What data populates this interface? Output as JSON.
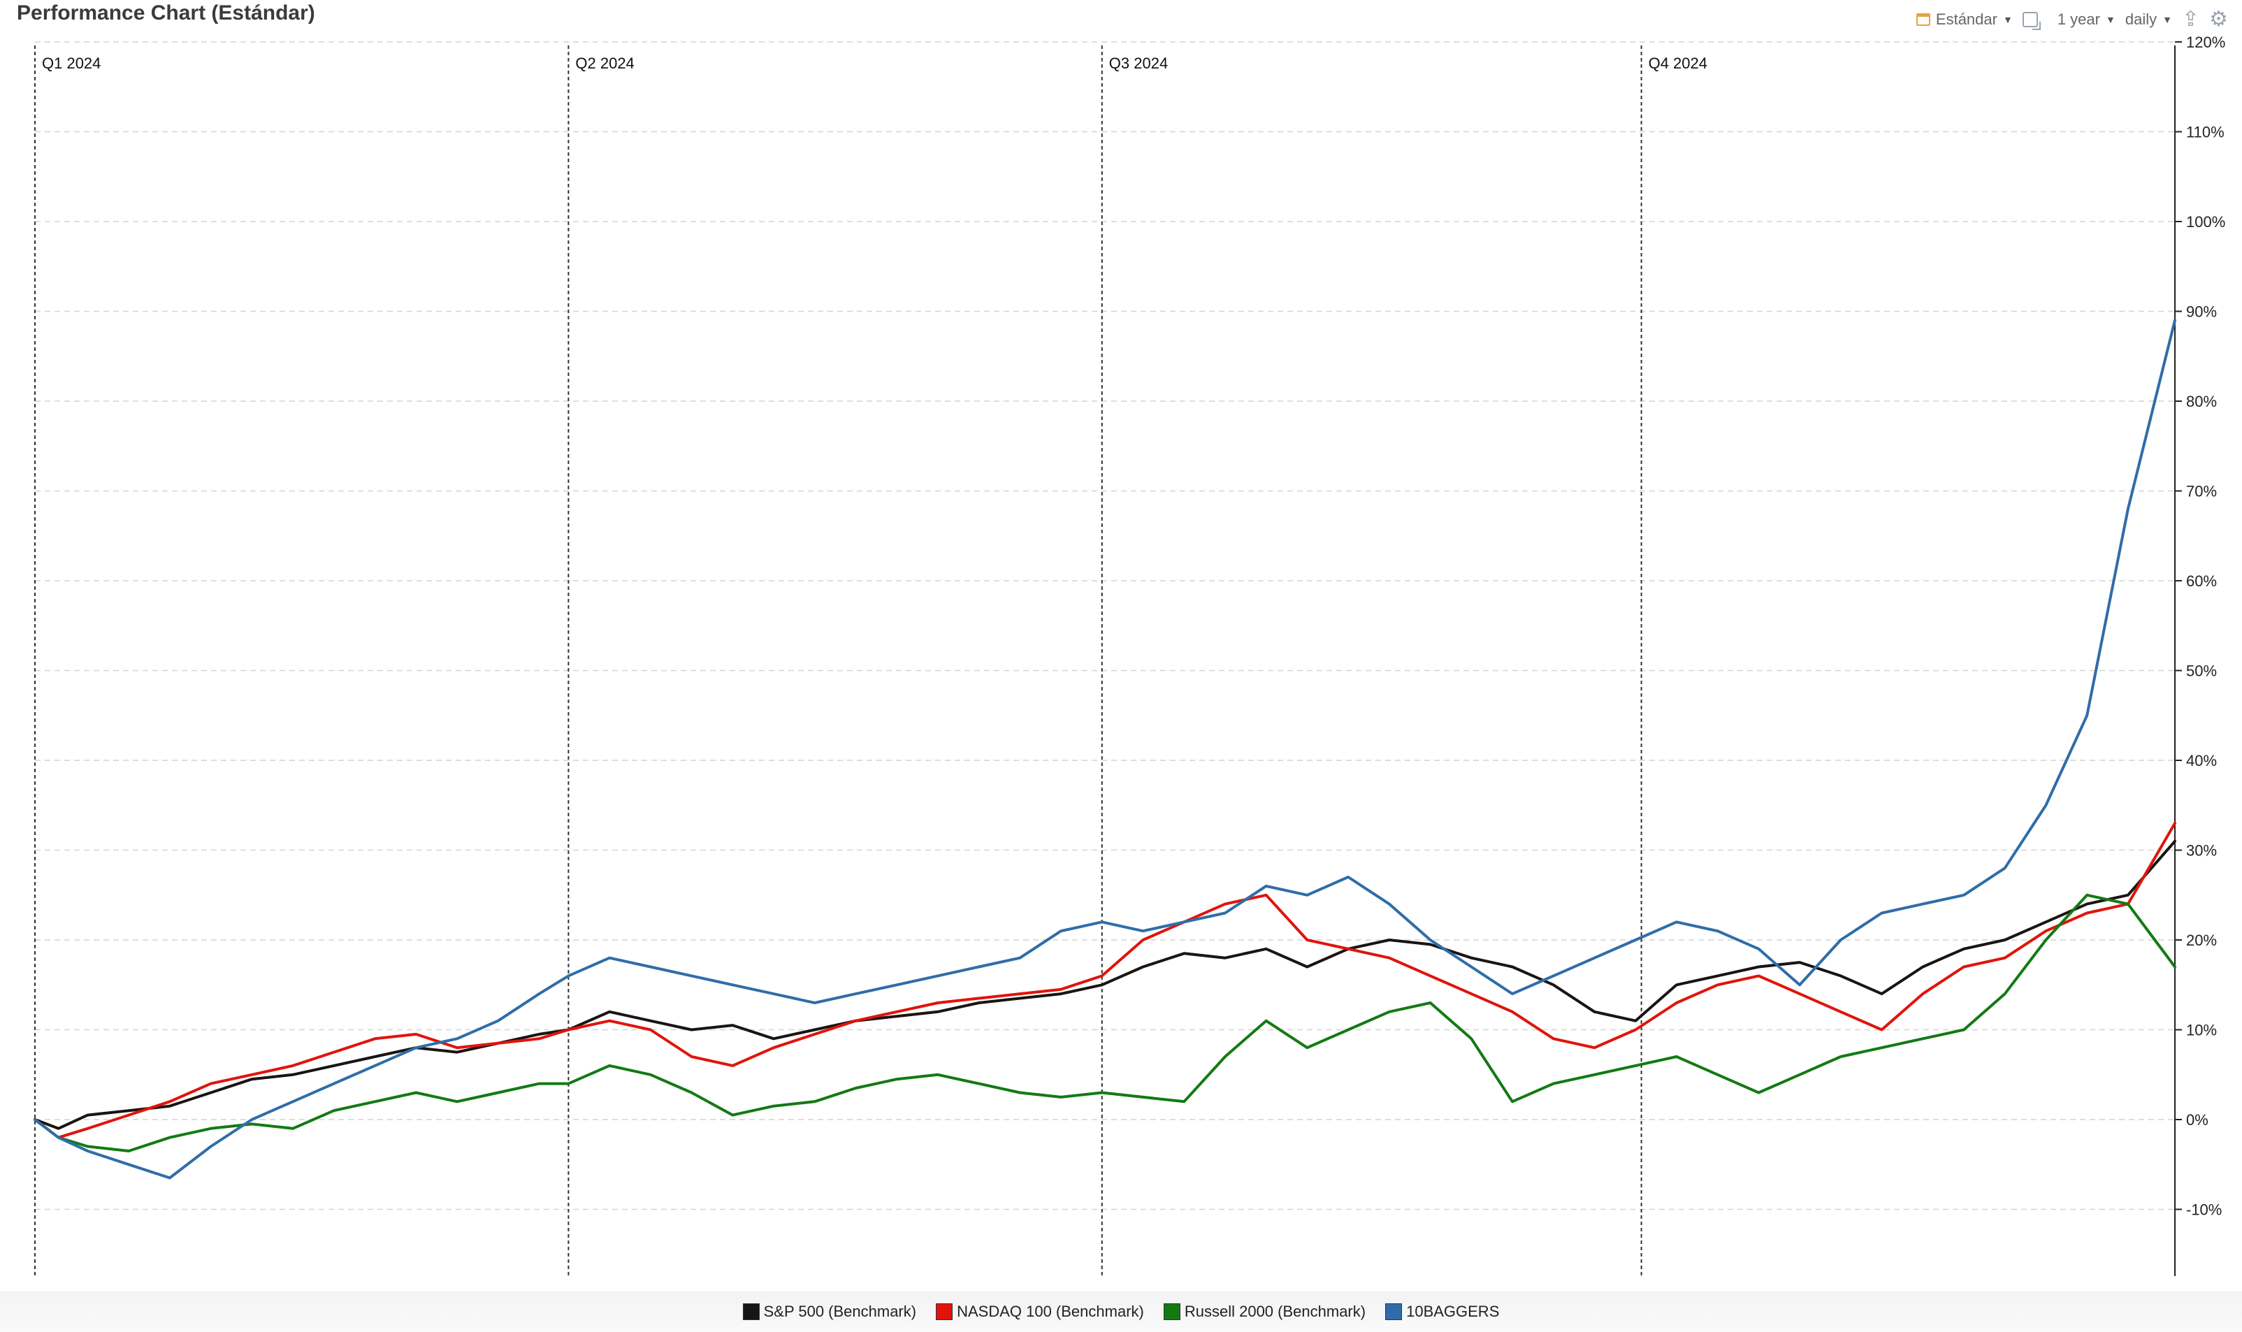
{
  "title": "Performance Chart (Estándar)",
  "toolbar": {
    "template_label": "Estándar",
    "range_label": "1 year",
    "interval_label": "daily",
    "icons": [
      "calendar-icon",
      "compare-icon",
      "export-icon",
      "gear-icon"
    ]
  },
  "chart_data": {
    "type": "line",
    "x_range": [
      "2024-01-01",
      "2024-12-31"
    ],
    "ylim": [
      -15,
      120
    ],
    "y_ticks": [
      -10,
      0,
      10,
      20,
      30,
      40,
      50,
      60,
      70,
      80,
      90,
      100,
      110,
      120
    ],
    "y_tick_labels": [
      "-10%",
      "0%",
      "10%",
      "20%",
      "30%",
      "40%",
      "50%",
      "60%",
      "70%",
      "80%",
      "90%",
      "100%",
      "110%",
      "120%"
    ],
    "quarters": [
      {
        "label": "Q1 2024",
        "date": "2024-01-01"
      },
      {
        "label": "Q2 2024",
        "date": "2024-04-01"
      },
      {
        "label": "Q3 2024",
        "date": "2024-07-01"
      },
      {
        "label": "Q4 2024",
        "date": "2024-10-01"
      }
    ],
    "legend_position": "bottom",
    "series": [
      {
        "name": "S&P 500  (Benchmark)",
        "color": "#1a1412",
        "points": [
          [
            "2024-01-01",
            0
          ],
          [
            "2024-01-05",
            -1
          ],
          [
            "2024-01-10",
            0.5
          ],
          [
            "2024-01-17",
            1
          ],
          [
            "2024-01-24",
            1.5
          ],
          [
            "2024-01-31",
            3
          ],
          [
            "2024-02-07",
            4.5
          ],
          [
            "2024-02-14",
            5
          ],
          [
            "2024-02-21",
            6
          ],
          [
            "2024-02-28",
            7
          ],
          [
            "2024-03-06",
            8
          ],
          [
            "2024-03-13",
            7.5
          ],
          [
            "2024-03-20",
            8.5
          ],
          [
            "2024-03-27",
            9.5
          ],
          [
            "2024-04-01",
            10
          ],
          [
            "2024-04-08",
            12
          ],
          [
            "2024-04-15",
            11
          ],
          [
            "2024-04-22",
            10
          ],
          [
            "2024-04-29",
            10.5
          ],
          [
            "2024-05-06",
            9
          ],
          [
            "2024-05-13",
            10
          ],
          [
            "2024-05-20",
            11
          ],
          [
            "2024-05-27",
            11.5
          ],
          [
            "2024-06-03",
            12
          ],
          [
            "2024-06-10",
            13
          ],
          [
            "2024-06-17",
            13.5
          ],
          [
            "2024-06-24",
            14
          ],
          [
            "2024-07-01",
            15
          ],
          [
            "2024-07-08",
            17
          ],
          [
            "2024-07-15",
            18.5
          ],
          [
            "2024-07-22",
            18
          ],
          [
            "2024-07-29",
            19
          ],
          [
            "2024-08-05",
            17
          ],
          [
            "2024-08-12",
            19
          ],
          [
            "2024-08-19",
            20
          ],
          [
            "2024-08-26",
            19.5
          ],
          [
            "2024-09-02",
            18
          ],
          [
            "2024-09-09",
            17
          ],
          [
            "2024-09-16",
            15
          ],
          [
            "2024-09-23",
            12
          ],
          [
            "2024-09-30",
            11
          ],
          [
            "2024-10-07",
            15
          ],
          [
            "2024-10-14",
            16
          ],
          [
            "2024-10-21",
            17
          ],
          [
            "2024-10-28",
            17.5
          ],
          [
            "2024-11-04",
            16
          ],
          [
            "2024-11-11",
            14
          ],
          [
            "2024-11-18",
            17
          ],
          [
            "2024-11-25",
            19
          ],
          [
            "2024-12-02",
            20
          ],
          [
            "2024-12-09",
            22
          ],
          [
            "2024-12-16",
            24
          ],
          [
            "2024-12-23",
            25
          ],
          [
            "2024-12-31",
            31
          ]
        ]
      },
      {
        "name": "NASDAQ 100 (Benchmark)",
        "color": "#e0140c",
        "points": [
          [
            "2024-01-01",
            0
          ],
          [
            "2024-01-05",
            -2
          ],
          [
            "2024-01-10",
            -1
          ],
          [
            "2024-01-17",
            0.5
          ],
          [
            "2024-01-24",
            2
          ],
          [
            "2024-01-31",
            4
          ],
          [
            "2024-02-07",
            5
          ],
          [
            "2024-02-14",
            6
          ],
          [
            "2024-02-21",
            7.5
          ],
          [
            "2024-02-28",
            9
          ],
          [
            "2024-03-06",
            9.5
          ],
          [
            "2024-03-13",
            8
          ],
          [
            "2024-03-20",
            8.5
          ],
          [
            "2024-03-27",
            9
          ],
          [
            "2024-04-01",
            10
          ],
          [
            "2024-04-08",
            11
          ],
          [
            "2024-04-15",
            10
          ],
          [
            "2024-04-22",
            7
          ],
          [
            "2024-04-29",
            6
          ],
          [
            "2024-05-06",
            8
          ],
          [
            "2024-05-13",
            9.5
          ],
          [
            "2024-05-20",
            11
          ],
          [
            "2024-05-27",
            12
          ],
          [
            "2024-06-03",
            13
          ],
          [
            "2024-06-10",
            13.5
          ],
          [
            "2024-06-17",
            14
          ],
          [
            "2024-06-24",
            14.5
          ],
          [
            "2024-07-01",
            16
          ],
          [
            "2024-07-08",
            20
          ],
          [
            "2024-07-15",
            22
          ],
          [
            "2024-07-22",
            24
          ],
          [
            "2024-07-29",
            25
          ],
          [
            "2024-08-05",
            20
          ],
          [
            "2024-08-12",
            19
          ],
          [
            "2024-08-19",
            18
          ],
          [
            "2024-08-26",
            16
          ],
          [
            "2024-09-02",
            14
          ],
          [
            "2024-09-09",
            12
          ],
          [
            "2024-09-16",
            9
          ],
          [
            "2024-09-23",
            8
          ],
          [
            "2024-09-30",
            10
          ],
          [
            "2024-10-07",
            13
          ],
          [
            "2024-10-14",
            15
          ],
          [
            "2024-10-21",
            16
          ],
          [
            "2024-10-28",
            14
          ],
          [
            "2024-11-04",
            12
          ],
          [
            "2024-11-11",
            10
          ],
          [
            "2024-11-18",
            14
          ],
          [
            "2024-11-25",
            17
          ],
          [
            "2024-12-02",
            18
          ],
          [
            "2024-12-09",
            21
          ],
          [
            "2024-12-16",
            23
          ],
          [
            "2024-12-23",
            24
          ],
          [
            "2024-12-31",
            33
          ]
        ]
      },
      {
        "name": "Russell 2000 (Benchmark)",
        "color": "#137a13",
        "points": [
          [
            "2024-01-01",
            0
          ],
          [
            "2024-01-05",
            -2
          ],
          [
            "2024-01-10",
            -3
          ],
          [
            "2024-01-17",
            -3.5
          ],
          [
            "2024-01-24",
            -2
          ],
          [
            "2024-01-31",
            -1
          ],
          [
            "2024-02-07",
            -0.5
          ],
          [
            "2024-02-14",
            -1
          ],
          [
            "2024-02-21",
            1
          ],
          [
            "2024-02-28",
            2
          ],
          [
            "2024-03-06",
            3
          ],
          [
            "2024-03-13",
            2
          ],
          [
            "2024-03-20",
            3
          ],
          [
            "2024-03-27",
            4
          ],
          [
            "2024-04-01",
            4
          ],
          [
            "2024-04-08",
            6
          ],
          [
            "2024-04-15",
            5
          ],
          [
            "2024-04-22",
            3
          ],
          [
            "2024-04-29",
            0.5
          ],
          [
            "2024-05-06",
            1.5
          ],
          [
            "2024-05-13",
            2
          ],
          [
            "2024-05-20",
            3.5
          ],
          [
            "2024-05-27",
            4.5
          ],
          [
            "2024-06-03",
            5
          ],
          [
            "2024-06-10",
            4
          ],
          [
            "2024-06-17",
            3
          ],
          [
            "2024-06-24",
            2.5
          ],
          [
            "2024-07-01",
            3
          ],
          [
            "2024-07-08",
            2.5
          ],
          [
            "2024-07-15",
            2
          ],
          [
            "2024-07-22",
            7
          ],
          [
            "2024-07-29",
            11
          ],
          [
            "2024-08-05",
            8
          ],
          [
            "2024-08-12",
            10
          ],
          [
            "2024-08-19",
            12
          ],
          [
            "2024-08-26",
            13
          ],
          [
            "2024-09-02",
            9
          ],
          [
            "2024-09-09",
            2
          ],
          [
            "2024-09-16",
            4
          ],
          [
            "2024-09-23",
            5
          ],
          [
            "2024-09-30",
            6
          ],
          [
            "2024-10-07",
            7
          ],
          [
            "2024-10-14",
            5
          ],
          [
            "2024-10-21",
            3
          ],
          [
            "2024-10-28",
            5
          ],
          [
            "2024-11-04",
            7
          ],
          [
            "2024-11-11",
            8
          ],
          [
            "2024-11-18",
            9
          ],
          [
            "2024-11-25",
            10
          ],
          [
            "2024-12-02",
            14
          ],
          [
            "2024-12-09",
            20
          ],
          [
            "2024-12-16",
            25
          ],
          [
            "2024-12-23",
            24
          ],
          [
            "2024-12-31",
            17
          ]
        ]
      },
      {
        "name": "10BAGGERS",
        "color": "#2f6da8",
        "points": [
          [
            "2024-01-01",
            0
          ],
          [
            "2024-01-05",
            -2
          ],
          [
            "2024-01-10",
            -3.5
          ],
          [
            "2024-01-17",
            -5
          ],
          [
            "2024-01-24",
            -6.5
          ],
          [
            "2024-01-31",
            -3
          ],
          [
            "2024-02-07",
            0
          ],
          [
            "2024-02-14",
            2
          ],
          [
            "2024-02-21",
            4
          ],
          [
            "2024-02-28",
            6
          ],
          [
            "2024-03-06",
            8
          ],
          [
            "2024-03-13",
            9
          ],
          [
            "2024-03-20",
            11
          ],
          [
            "2024-03-27",
            14
          ],
          [
            "2024-04-01",
            16
          ],
          [
            "2024-04-08",
            18
          ],
          [
            "2024-04-15",
            17
          ],
          [
            "2024-04-22",
            16
          ],
          [
            "2024-04-29",
            15
          ],
          [
            "2024-05-06",
            14
          ],
          [
            "2024-05-13",
            13
          ],
          [
            "2024-05-20",
            14
          ],
          [
            "2024-05-27",
            15
          ],
          [
            "2024-06-03",
            16
          ],
          [
            "2024-06-10",
            17
          ],
          [
            "2024-06-17",
            18
          ],
          [
            "2024-06-24",
            21
          ],
          [
            "2024-07-01",
            22
          ],
          [
            "2024-07-08",
            21
          ],
          [
            "2024-07-15",
            22
          ],
          [
            "2024-07-22",
            23
          ],
          [
            "2024-07-29",
            26
          ],
          [
            "2024-08-05",
            25
          ],
          [
            "2024-08-12",
            27
          ],
          [
            "2024-08-19",
            24
          ],
          [
            "2024-08-26",
            20
          ],
          [
            "2024-09-02",
            17
          ],
          [
            "2024-09-09",
            14
          ],
          [
            "2024-09-16",
            16
          ],
          [
            "2024-09-23",
            18
          ],
          [
            "2024-09-30",
            20
          ],
          [
            "2024-10-07",
            22
          ],
          [
            "2024-10-14",
            21
          ],
          [
            "2024-10-21",
            19
          ],
          [
            "2024-10-28",
            15
          ],
          [
            "2024-11-04",
            20
          ],
          [
            "2024-11-11",
            23
          ],
          [
            "2024-11-18",
            24
          ],
          [
            "2024-11-25",
            25
          ],
          [
            "2024-12-02",
            28
          ],
          [
            "2024-12-09",
            35
          ],
          [
            "2024-12-16",
            45
          ],
          [
            "2024-12-23",
            68
          ],
          [
            "2024-12-31",
            89
          ]
        ]
      }
    ]
  }
}
